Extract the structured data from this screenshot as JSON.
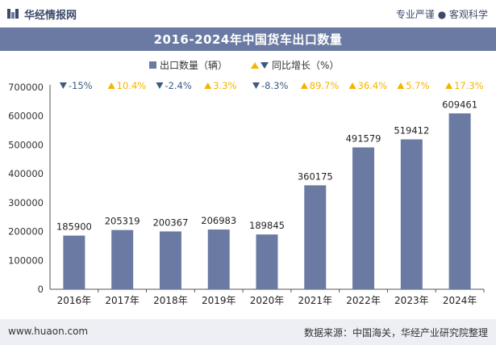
{
  "header": {
    "brand_name": "华经情报网",
    "tagline": "专业严谨 ● 客观科学"
  },
  "footer": {
    "website": "www.huaon.com",
    "source": "数据来源：中国海关，华经产业研究院整理"
  },
  "colors": {
    "bar": "#6a7aa3",
    "down_marker": "#3d5a80",
    "up_marker": "#f5b400",
    "title_band": "#6a7aa3"
  },
  "chart_data": {
    "type": "bar",
    "title": "2016-2024年中国货车出口数量",
    "categories": [
      "2016年",
      "2017年",
      "2018年",
      "2019年",
      "2020年",
      "2021年",
      "2022年",
      "2023年",
      "2024年"
    ],
    "series": [
      {
        "name": "出口数量（辆）",
        "values": [
          185900,
          205319,
          200367,
          206983,
          189845,
          360175,
          491579,
          519412,
          609461
        ]
      }
    ],
    "growth": {
      "name": "同比增长（%）",
      "labels": [
        "-15%",
        "10.4%",
        "-2.4%",
        "3.3%",
        "-8.3%",
        "89.7%",
        "36.4%",
        "5.7%",
        "17.3%"
      ],
      "directions": [
        "down",
        "up",
        "down",
        "up",
        "down",
        "up",
        "up",
        "up",
        "up"
      ]
    },
    "y_ticks": [
      "0",
      "100000",
      "200000",
      "300000",
      "400000",
      "500000",
      "600000",
      "700000"
    ],
    "ylim": [
      0,
      700000
    ],
    "legend_position": "top-center",
    "grid": false
  }
}
